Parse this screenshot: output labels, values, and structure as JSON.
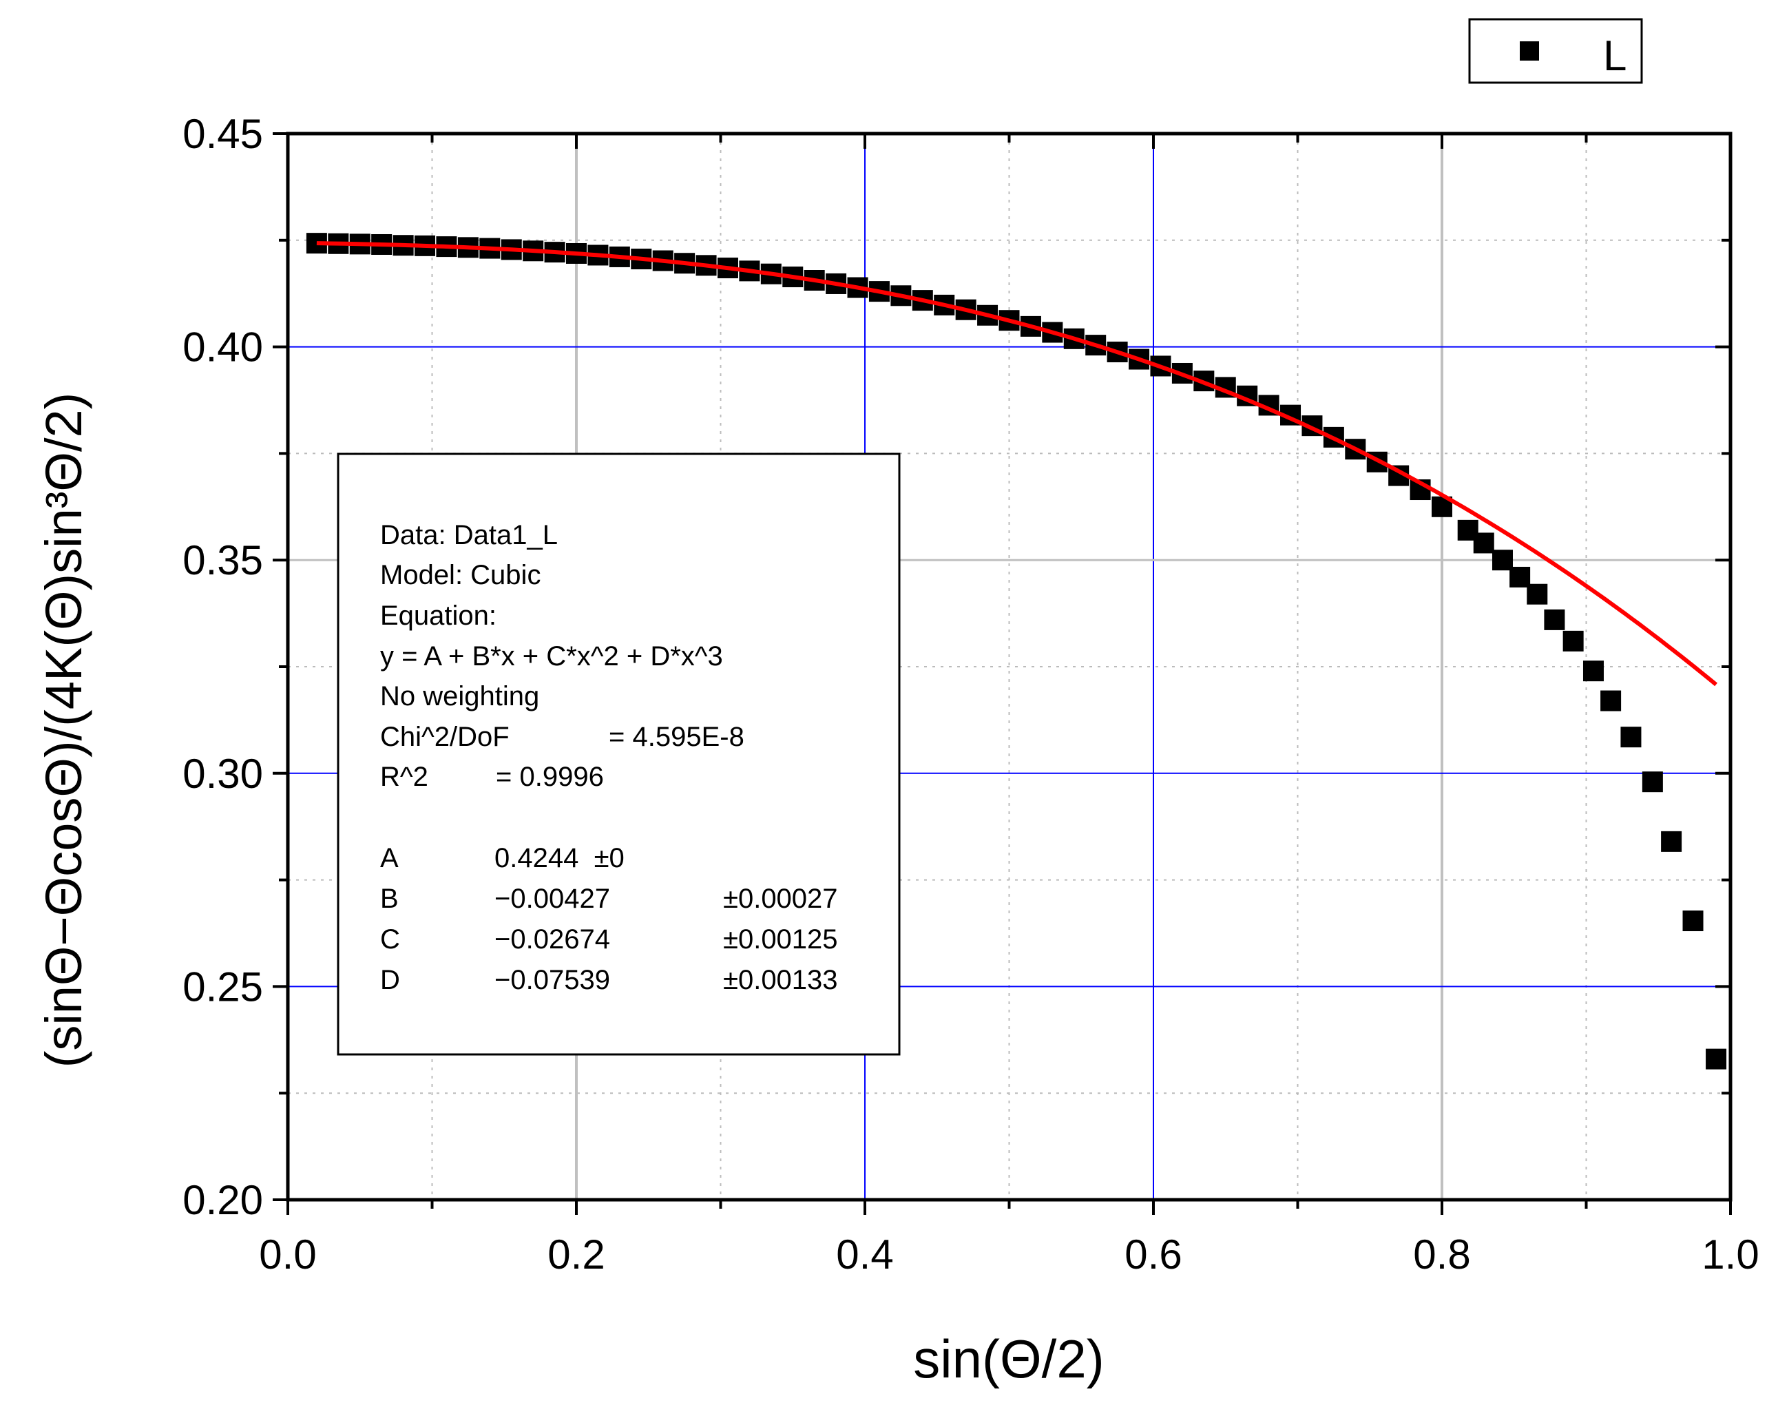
{
  "chart_data": {
    "type": "scatter",
    "title": "",
    "xlabel": "sin(Θ/2)",
    "ylabel": "(sinΘ−ΘcosΘ)/(4K(Θ)sin³Θ/2)",
    "xlim": [
      0.0,
      1.0
    ],
    "ylim": [
      0.2,
      0.45
    ],
    "xticks": [
      "0.0",
      "0.2",
      "0.4",
      "0.6",
      "0.8",
      "1.0"
    ],
    "yticks": [
      "0.20",
      "0.25",
      "0.30",
      "0.35",
      "0.40",
      "0.45"
    ],
    "grid": true,
    "legend": {
      "position": "top-right",
      "entries": [
        "L"
      ]
    },
    "colors": {
      "markers": "#000000",
      "fit": "#ff0000",
      "grid_blue": "#0000ff",
      "grid_gray": "#c0c0c0"
    },
    "series": [
      {
        "name": "L",
        "marker": "square",
        "x": [
          0.02,
          0.035,
          0.05,
          0.065,
          0.08,
          0.095,
          0.11,
          0.125,
          0.14,
          0.155,
          0.17,
          0.185,
          0.2,
          0.215,
          0.23,
          0.245,
          0.26,
          0.275,
          0.29,
          0.305,
          0.32,
          0.335,
          0.35,
          0.365,
          0.38,
          0.395,
          0.41,
          0.425,
          0.44,
          0.455,
          0.47,
          0.485,
          0.5,
          0.515,
          0.53,
          0.545,
          0.56,
          0.575,
          0.59,
          0.605,
          0.62,
          0.635,
          0.65,
          0.665,
          0.68,
          0.695,
          0.71,
          0.725,
          0.74,
          0.755,
          0.77,
          0.785,
          0.8,
          0.818,
          0.829,
          0.842,
          0.854,
          0.866,
          0.878,
          0.891,
          0.905,
          0.917,
          0.931,
          0.946,
          0.959,
          0.974,
          0.99
        ],
        "y": [
          0.4243,
          0.4242,
          0.4241,
          0.424,
          0.4238,
          0.4237,
          0.4235,
          0.4233,
          0.4231,
          0.4228,
          0.4225,
          0.4222,
          0.4219,
          0.4215,
          0.4211,
          0.4206,
          0.4202,
          0.4196,
          0.4191,
          0.4185,
          0.4178,
          0.4171,
          0.4164,
          0.4156,
          0.4148,
          0.4139,
          0.413,
          0.412,
          0.4109,
          0.4098,
          0.4087,
          0.4074,
          0.4062,
          0.4048,
          0.4034,
          0.4019,
          0.4004,
          0.3988,
          0.3971,
          0.3955,
          0.3938,
          0.392,
          0.3905,
          0.3885,
          0.3863,
          0.384,
          0.3815,
          0.3788,
          0.376,
          0.373,
          0.3698,
          0.3665,
          0.3625,
          0.357,
          0.354,
          0.35,
          0.346,
          0.342,
          0.336,
          0.331,
          0.324,
          0.317,
          0.3085,
          0.298,
          0.284,
          0.2654,
          0.233
        ]
      }
    ],
    "fit": {
      "model": "cubic",
      "color": "#ff0000",
      "x_range": [
        0.02,
        0.99
      ],
      "params": {
        "A": 0.4244,
        "B": -0.00427,
        "C": -0.02674,
        "D": -0.07539
      }
    },
    "annotation": {
      "lines": [
        "Data: Data1_L",
        "Model: Cubic",
        "Equation:",
        "y = A + B*x + C*x^2 + D*x^3",
        "No weighting"
      ],
      "chi_label": "Chi^2/DoF",
      "chi_value": "= 4.595E-8",
      "r2_label": "R^2",
      "r2_value": "=  0.9996",
      "params": [
        {
          "name": "A",
          "value": "0.4244  ±0",
          "error": ""
        },
        {
          "name": "B",
          "value": "−0.00427",
          "error": "±0.00027"
        },
        {
          "name": "C",
          "value": "−0.02674",
          "error": "±0.00125"
        },
        {
          "name": "D",
          "value": "−0.07539",
          "error": "±0.00133"
        }
      ]
    }
  }
}
